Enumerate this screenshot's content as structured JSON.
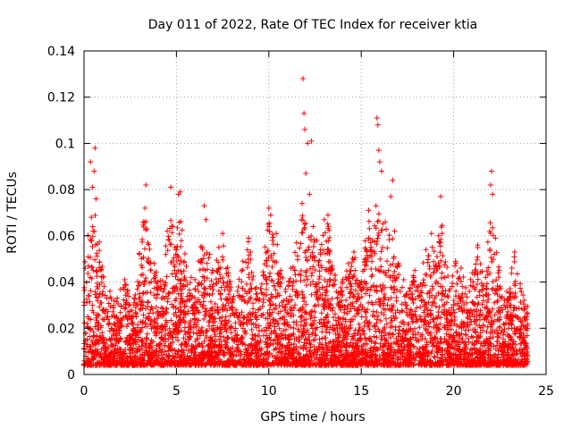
{
  "chart_data": {
    "type": "scatter",
    "title": "Day 011 of 2022, Rate Of TEC Index for receiver ktia",
    "xlabel": "GPS time / hours",
    "ylabel": "ROTI / TECUs",
    "xlim": [
      0,
      25
    ],
    "ylim": [
      0,
      0.14
    ],
    "xticks": [
      0,
      5,
      10,
      15,
      20,
      25
    ],
    "xtick_labels": [
      "0",
      "5",
      "10",
      "15",
      "20",
      "25"
    ],
    "yticks": [
      0,
      0.02,
      0.04,
      0.06,
      0.08,
      0.1,
      0.12,
      0.14
    ],
    "ytick_labels": [
      "0",
      "0.02",
      "0.04",
      "0.06",
      "0.08",
      "0.1",
      "0.12",
      "0.14"
    ],
    "grid": true,
    "marker": "+",
    "color": "#ff0000",
    "series": [
      {
        "name": "ROTI",
        "points": [
          [
            0.1,
            0.018
          ],
          [
            0.2,
            0.025
          ],
          [
            0.3,
            0.012
          ],
          [
            0.35,
            0.092
          ],
          [
            0.4,
            0.068
          ],
          [
            0.45,
            0.081
          ],
          [
            0.5,
            0.045
          ],
          [
            0.55,
            0.088
          ],
          [
            0.6,
            0.098
          ],
          [
            0.65,
            0.076
          ],
          [
            0.7,
            0.038
          ],
          [
            0.8,
            0.022
          ],
          [
            0.9,
            0.031
          ],
          [
            1.0,
            0.015
          ],
          [
            1.2,
            0.028
          ],
          [
            1.4,
            0.036
          ],
          [
            1.6,
            0.019
          ],
          [
            1.8,
            0.033
          ],
          [
            2.0,
            0.024
          ],
          [
            2.2,
            0.041
          ],
          [
            2.5,
            0.017
          ],
          [
            2.8,
            0.029
          ],
          [
            3.0,
            0.035
          ],
          [
            3.2,
            0.066
          ],
          [
            3.3,
            0.072
          ],
          [
            3.35,
            0.082
          ],
          [
            3.4,
            0.063
          ],
          [
            3.6,
            0.028
          ],
          [
            3.8,
            0.048
          ],
          [
            4.0,
            0.021
          ],
          [
            4.2,
            0.033
          ],
          [
            4.5,
            0.062
          ],
          [
            4.7,
            0.081
          ],
          [
            4.8,
            0.064
          ],
          [
            4.9,
            0.045
          ],
          [
            5.0,
            0.054
          ],
          [
            5.1,
            0.078
          ],
          [
            5.2,
            0.079
          ],
          [
            5.3,
            0.037
          ],
          [
            5.5,
            0.026
          ],
          [
            5.8,
            0.042
          ],
          [
            6.0,
            0.031
          ],
          [
            6.2,
            0.049
          ],
          [
            6.5,
            0.073
          ],
          [
            6.6,
            0.067
          ],
          [
            6.8,
            0.052
          ],
          [
            7.0,
            0.039
          ],
          [
            7.3,
            0.055
          ],
          [
            7.5,
            0.061
          ],
          [
            7.8,
            0.044
          ],
          [
            8.0,
            0.028
          ],
          [
            8.3,
            0.036
          ],
          [
            8.6,
            0.049
          ],
          [
            8.9,
            0.059
          ],
          [
            9.1,
            0.041
          ],
          [
            9.4,
            0.033
          ],
          [
            9.7,
            0.026
          ],
          [
            9.9,
            0.047
          ],
          [
            10.0,
            0.072
          ],
          [
            10.1,
            0.069
          ],
          [
            10.2,
            0.058
          ],
          [
            10.4,
            0.061
          ],
          [
            10.6,
            0.038
          ],
          [
            10.9,
            0.029
          ],
          [
            11.2,
            0.046
          ],
          [
            11.5,
            0.057
          ],
          [
            11.8,
            0.074
          ],
          [
            11.85,
            0.128
          ],
          [
            11.9,
            0.113
          ],
          [
            11.95,
            0.106
          ],
          [
            12.0,
            0.087
          ],
          [
            12.1,
            0.1
          ],
          [
            12.2,
            0.078
          ],
          [
            12.3,
            0.101
          ],
          [
            12.4,
            0.064
          ],
          [
            12.6,
            0.058
          ],
          [
            12.8,
            0.052
          ],
          [
            13.0,
            0.067
          ],
          [
            13.2,
            0.069
          ],
          [
            13.4,
            0.045
          ],
          [
            13.7,
            0.033
          ],
          [
            14.0,
            0.041
          ],
          [
            14.3,
            0.048
          ],
          [
            14.6,
            0.053
          ],
          [
            14.9,
            0.039
          ],
          [
            15.2,
            0.049
          ],
          [
            15.4,
            0.071
          ],
          [
            15.6,
            0.058
          ],
          [
            15.8,
            0.073
          ],
          [
            15.85,
            0.111
          ],
          [
            15.9,
            0.108
          ],
          [
            15.95,
            0.097
          ],
          [
            16.0,
            0.092
          ],
          [
            16.1,
            0.088
          ],
          [
            16.3,
            0.066
          ],
          [
            16.6,
            0.077
          ],
          [
            16.7,
            0.084
          ],
          [
            16.8,
            0.062
          ],
          [
            17.0,
            0.048
          ],
          [
            17.3,
            0.041
          ],
          [
            17.6,
            0.036
          ],
          [
            17.9,
            0.045
          ],
          [
            18.2,
            0.039
          ],
          [
            18.5,
            0.054
          ],
          [
            18.8,
            0.061
          ],
          [
            19.1,
            0.051
          ],
          [
            19.3,
            0.077
          ],
          [
            19.5,
            0.042
          ],
          [
            19.8,
            0.037
          ],
          [
            20.1,
            0.049
          ],
          [
            20.4,
            0.046
          ],
          [
            20.7,
            0.031
          ],
          [
            21.0,
            0.044
          ],
          [
            21.3,
            0.056
          ],
          [
            21.6,
            0.034
          ],
          [
            21.9,
            0.027
          ],
          [
            22.0,
            0.082
          ],
          [
            22.05,
            0.088
          ],
          [
            22.1,
            0.078
          ],
          [
            22.2,
            0.052
          ],
          [
            22.5,
            0.038
          ],
          [
            22.8,
            0.029
          ],
          [
            23.1,
            0.035
          ],
          [
            23.3,
            0.053
          ],
          [
            23.5,
            0.024
          ],
          [
            23.8,
            0.028
          ],
          [
            24.0,
            0.021
          ]
        ],
        "noise_band": {
          "x_start": 0,
          "x_end": 24,
          "y_low": 0.004,
          "y_typical_high": 0.03,
          "count": 5200
        }
      }
    ]
  }
}
